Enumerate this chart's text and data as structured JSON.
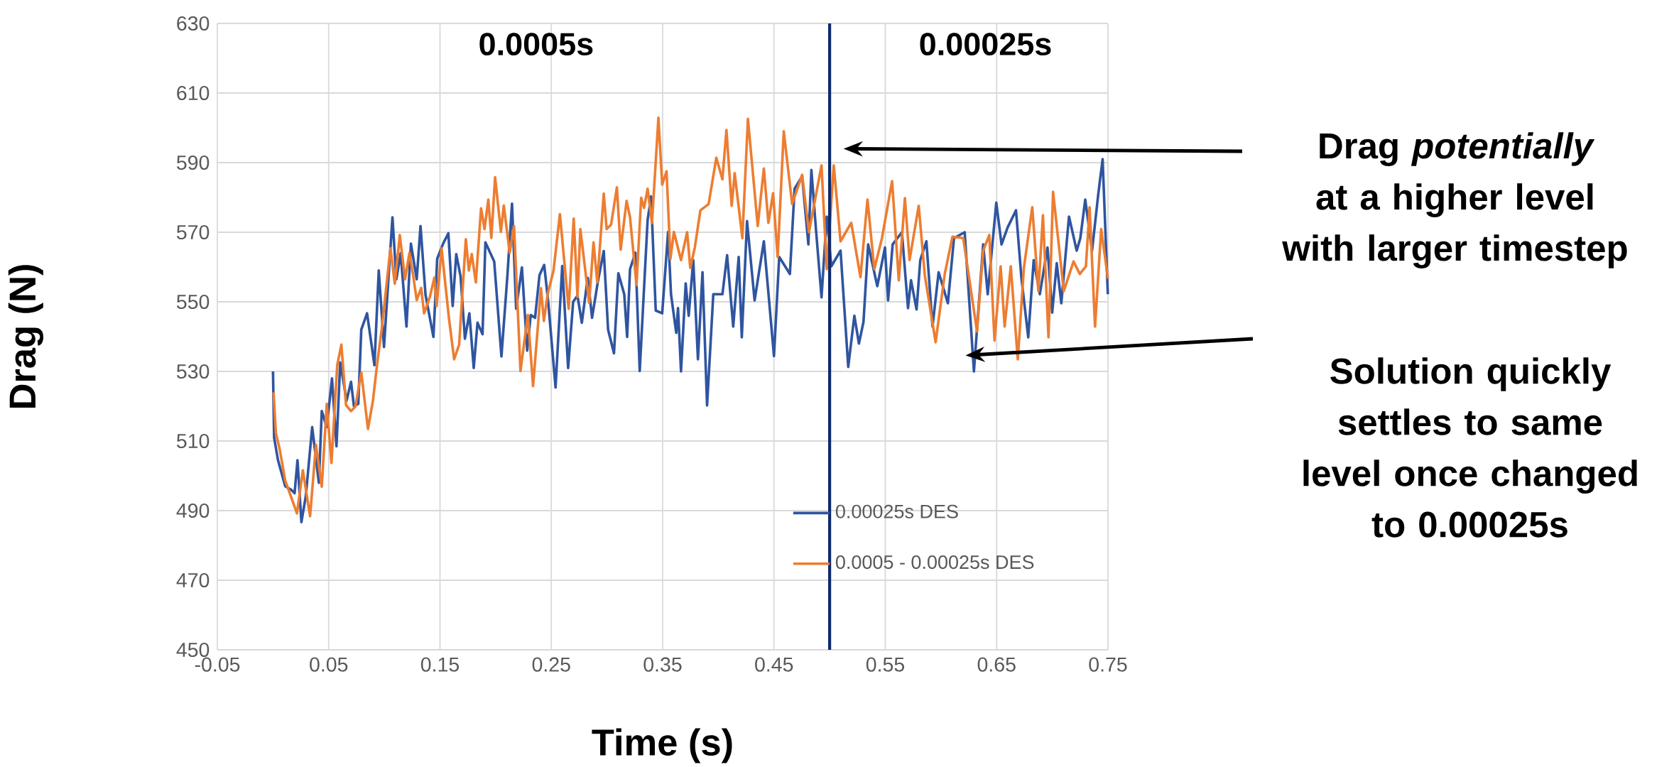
{
  "chart_data": {
    "type": "line",
    "xlabel": "Time (s)",
    "ylabel": "Drag (N)",
    "xlim": [
      -0.05,
      0.75
    ],
    "xticks": [
      -0.05,
      0.05,
      0.15,
      0.25,
      0.35,
      0.45,
      0.55,
      0.65,
      0.75
    ],
    "ylim": [
      450,
      630
    ],
    "yticks": [
      450,
      470,
      490,
      510,
      530,
      550,
      570,
      590,
      610,
      630
    ],
    "grid": true,
    "legend": "bottom right",
    "ref_lines": [
      {
        "axis": "x",
        "value": 0.5,
        "color": "#0e2a6e"
      }
    ],
    "annotations": [
      "0.0005s",
      "0.00025s",
      "Drag *potentially* at a higher level with larger timestep",
      "Solution quickly settles to same level once changed to 0.00025s"
    ],
    "series": [
      {
        "name": "0.00025s DES",
        "color": "#2f55a0",
        "x": [
          0.0,
          0.001,
          0.0045,
          0.011,
          0.0163,
          0.0194,
          0.022,
          0.0255,
          0.0294,
          0.0352,
          0.0412,
          0.0438,
          0.0483,
          0.053,
          0.057,
          0.0604,
          0.0661,
          0.0701,
          0.0727,
          0.0766,
          0.0793,
          0.0845,
          0.0911,
          0.095,
          0.0997,
          0.1073,
          0.1108,
          0.1147,
          0.1199,
          0.1239,
          0.1291,
          0.1325,
          0.137,
          0.1441,
          0.1475,
          0.1528,
          0.1575,
          0.1614,
          0.1646,
          0.1685,
          0.1724,
          0.1764,
          0.1803,
          0.1837,
          0.1882,
          0.1908,
          0.1987,
          0.2052,
          0.2105,
          0.2147,
          0.2184,
          0.2236,
          0.2283,
          0.2315,
          0.2354,
          0.2394,
          0.2436,
          0.2472,
          0.2538,
          0.2598,
          0.2651,
          0.2696,
          0.2735,
          0.2774,
          0.2827,
          0.2866,
          0.2919,
          0.2971,
          0.301,
          0.3063,
          0.3102,
          0.3155,
          0.3181,
          0.3207,
          0.3255,
          0.3294,
          0.3365,
          0.3396,
          0.3438,
          0.3496,
          0.3549,
          0.3575,
          0.3622,
          0.3638,
          0.3665,
          0.3707,
          0.3734,
          0.3775,
          0.3817,
          0.3858,
          0.3899,
          0.3955,
          0.4037,
          0.4079,
          0.4134,
          0.4183,
          0.4211,
          0.4258,
          0.4326,
          0.4409,
          0.45,
          0.4547,
          0.4643,
          0.4685,
          0.4753,
          0.4809,
          0.4836,
          0.4877,
          0.4927,
          0.4974,
          0.5015,
          0.5098,
          0.5167,
          0.5222,
          0.5263,
          0.5304,
          0.5346,
          0.5428,
          0.5497,
          0.5525,
          0.5566,
          0.5649,
          0.5704,
          0.5731,
          0.5781,
          0.5814,
          0.5869,
          0.5924,
          0.5979,
          0.6062,
          0.6117,
          0.6213,
          0.6296,
          0.6379,
          0.642,
          0.6497,
          0.6544,
          0.6599,
          0.6674,
          0.6723,
          0.6784,
          0.6833,
          0.6888,
          0.6957,
          0.6999,
          0.704,
          0.7081,
          0.715,
          0.7219,
          0.7252,
          0.7296,
          0.7357,
          0.7412,
          0.7452,
          0.7499
        ],
        "values": [
          530,
          511,
          504.5,
          497,
          496,
          495,
          504.5,
          486.7,
          494,
          514,
          498,
          518.6,
          514,
          528,
          508.5,
          532.6,
          521.6,
          527,
          520,
          520.7,
          542,
          546.7,
          531.8,
          559,
          537,
          574.3,
          556.5,
          564,
          542.9,
          566.7,
          556.5,
          571.8,
          552,
          539.9,
          562.4,
          566.7,
          569.7,
          548.8,
          563.7,
          557.3,
          539.4,
          546.7,
          531,
          544,
          540.7,
          567.1,
          561.6,
          534.3,
          557.3,
          578.2,
          548,
          559.9,
          536,
          546.2,
          545.4,
          557.7,
          560.6,
          550,
          525.4,
          560.3,
          531,
          550,
          551.8,
          544,
          556.9,
          545.4,
          556,
          564.6,
          542,
          535.2,
          558.2,
          552.2,
          539.9,
          559.4,
          564.1,
          530.1,
          573.5,
          580.3,
          547.5,
          546.7,
          570.1,
          552.2,
          541.1,
          548.2,
          530,
          555.3,
          546,
          562,
          533.5,
          558.5,
          520.2,
          552.2,
          552.2,
          563.4,
          542.9,
          562.9,
          539.8,
          573.2,
          550.4,
          567.4,
          534.4,
          562.9,
          558,
          582.5,
          586.1,
          566.5,
          587.9,
          570.9,
          551.3,
          574.5,
          560.2,
          564.7,
          531.3,
          546,
          538,
          544.2,
          566.5,
          554.5,
          565.6,
          550.4,
          566.5,
          570,
          548.2,
          556.2,
          547.8,
          562,
          567.4,
          542.9,
          558.5,
          549.6,
          568.3,
          570,
          530,
          566.5,
          552.2,
          578.5,
          566.5,
          571.4,
          576.3,
          556.7,
          539.8,
          562,
          552.2,
          565.6,
          546.9,
          561.1,
          549.6,
          574.5,
          564.7,
          568.3,
          579.4,
          564.7,
          580.7,
          591,
          552.2
        ]
      },
      {
        "name": "0.0005 - 0.00025s DES",
        "color": "#ed7d31",
        "x": [
          0.0005,
          0.0026,
          0.0058,
          0.011,
          0.0163,
          0.0215,
          0.0268,
          0.0333,
          0.0386,
          0.0438,
          0.0483,
          0.0525,
          0.0577,
          0.0614,
          0.0656,
          0.0701,
          0.074,
          0.0793,
          0.0853,
          0.0898,
          0.0937,
          0.0976,
          0.1055,
          0.1094,
          0.1139,
          0.1186,
          0.1226,
          0.126,
          0.1291,
          0.1331,
          0.1357,
          0.1409,
          0.1449,
          0.147,
          0.1514,
          0.158,
          0.1627,
          0.1672,
          0.1732,
          0.1759,
          0.1785,
          0.1822,
          0.1869,
          0.19,
          0.1934,
          0.1961,
          0.1995,
          0.2047,
          0.2073,
          0.2126,
          0.2165,
          0.2223,
          0.2289,
          0.2336,
          0.2407,
          0.2433,
          0.2467,
          0.252,
          0.2577,
          0.2656,
          0.2701,
          0.2735,
          0.2761,
          0.284,
          0.2879,
          0.2913,
          0.2971,
          0.2997,
          0.3037,
          0.3089,
          0.3123,
          0.3176,
          0.3207,
          0.3265,
          0.3307,
          0.3333,
          0.3365,
          0.3404,
          0.3462,
          0.3496,
          0.3535,
          0.357,
          0.3601,
          0.3665,
          0.372,
          0.3748,
          0.3789,
          0.3839,
          0.3913,
          0.3982,
          0.4037,
          0.4073,
          0.412,
          0.4147,
          0.4216,
          0.4266,
          0.4354,
          0.4409,
          0.445,
          0.4492,
          0.4533,
          0.4588,
          0.4663,
          0.4753,
          0.4814,
          0.4864,
          0.4927,
          0.4974,
          0.5037,
          0.5098,
          0.5194,
          0.5277,
          0.534,
          0.5401,
          0.547,
          0.5561,
          0.5621,
          0.5676,
          0.5718,
          0.58,
          0.5855,
          0.5952,
          0.6034,
          0.6103,
          0.62,
          0.6324,
          0.6379,
          0.6434,
          0.6481,
          0.6536,
          0.6572,
          0.6627,
          0.669,
          0.6745,
          0.682,
          0.6875,
          0.6916,
          0.6966,
          0.7007,
          0.7103,
          0.7191,
          0.7247,
          0.7302,
          0.7335,
          0.7384,
          0.7439,
          0.75
        ],
        "values": [
          524,
          512.2,
          508,
          498.6,
          493.9,
          489.2,
          501.6,
          488.4,
          508.9,
          496.9,
          520.7,
          503.7,
          531.8,
          537.7,
          520.3,
          518.6,
          519.9,
          529.7,
          513.5,
          521.6,
          532.6,
          542,
          565.4,
          555.2,
          569.2,
          556.5,
          564.1,
          557.3,
          550.5,
          554,
          546.7,
          551.4,
          556.9,
          548.8,
          565.4,
          545.4,
          533.5,
          537.7,
          568,
          559,
          563.7,
          555.6,
          576.9,
          570.9,
          579.4,
          568.4,
          585.8,
          570.1,
          577.7,
          564.1,
          571.8,
          530.1,
          546.2,
          525.8,
          553.9,
          544.5,
          552.2,
          559,
          575.2,
          548,
          573.9,
          551.4,
          570.9,
          549.7,
          567.1,
          555.6,
          581.1,
          570.9,
          572.2,
          582.9,
          565,
          579,
          574.3,
          554.8,
          579.9,
          577,
          582.5,
          572.6,
          602.9,
          583.7,
          587.5,
          562.4,
          570.1,
          562,
          570,
          559.8,
          565.6,
          576.3,
          578.1,
          591.4,
          585.2,
          599.4,
          577.6,
          587,
          568.3,
          602.6,
          571.8,
          588.3,
          572.7,
          581.2,
          562.9,
          599,
          578.1,
          586.5,
          570,
          578.5,
          589.2,
          559.4,
          589.2,
          567.4,
          572.7,
          557.1,
          579.4,
          559.4,
          568.3,
          584.7,
          556.2,
          579.8,
          562,
          577.6,
          557.6,
          538.4,
          558,
          568.7,
          568.3,
          541.5,
          564.7,
          569.2,
          538.9,
          560.2,
          542.9,
          560.2,
          533.5,
          559.8,
          577.2,
          553.1,
          574.9,
          539.8,
          581.6,
          553.1,
          561.6,
          558,
          560.2,
          577.2,
          542.9,
          570.9,
          556.7
        ]
      }
    ]
  }
}
